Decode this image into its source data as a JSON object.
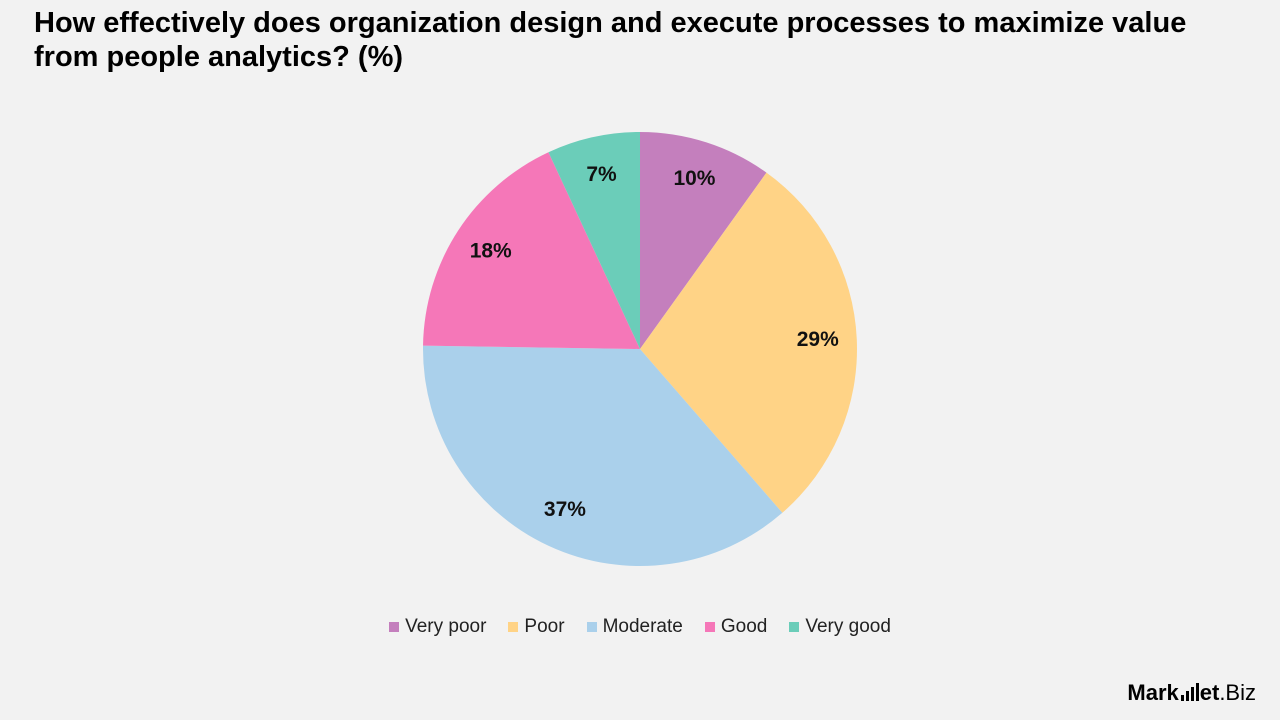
{
  "chart_data": {
    "type": "pie",
    "title": "How effectively does organization design and execute processes to maximize value from people analytics? (%)",
    "categories": [
      "Very poor",
      "Poor",
      "Moderate",
      "Good",
      "Very good"
    ],
    "values": [
      10,
      29,
      37,
      18,
      7
    ],
    "labels": [
      "10%",
      "29%",
      "37%",
      "18%",
      "7%"
    ],
    "colors": [
      "#c47fbd",
      "#ffd386",
      "#aad0eb",
      "#f577b8",
      "#6bcdb9"
    ],
    "legend_position": "bottom"
  },
  "branding": {
    "logo_part1": "Mark",
    "logo_part2": "et",
    "logo_part3": ".Biz"
  }
}
